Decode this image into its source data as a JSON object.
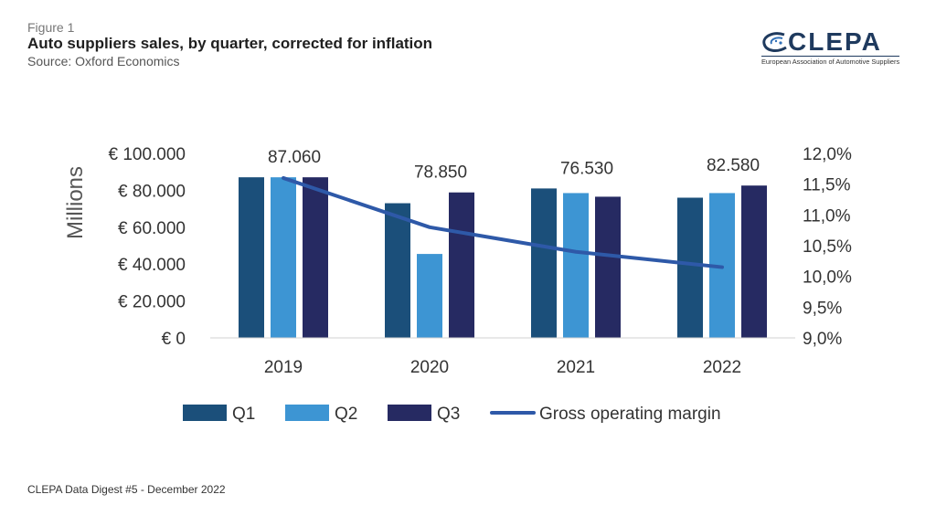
{
  "header": {
    "figure_label": "Figure 1",
    "title": "Auto suppliers sales, by quarter, corrected for inflation",
    "source": "Source: Oxford Economics"
  },
  "logo": {
    "wordmark": "CLEPA",
    "tagline": "European Association of Automotive Suppliers",
    "colors": {
      "primary": "#1f3a5e",
      "accent": "#2f6fb7"
    }
  },
  "footer": {
    "text": "CLEPA Data Digest #5 - December 2022"
  },
  "chart_data": {
    "type": "bar",
    "title": "",
    "xlabel": "",
    "ylabel": "Millions",
    "categories": [
      "2019",
      "2020",
      "2021",
      "2022"
    ],
    "y_ticks": [
      "€ 100.000",
      "€ 80.000",
      "€ 60.000",
      "€ 40.000",
      "€ 20.000",
      "€ 0"
    ],
    "ylim": [
      0,
      100000
    ],
    "y2_ticks": [
      "12,0%",
      "11,5%",
      "11,0%",
      "10,5%",
      "10,0%",
      "9,5%",
      "9,0%"
    ],
    "y2lim": [
      9.0,
      12.0
    ],
    "grid": false,
    "legend_position": "bottom",
    "series": [
      {
        "name": "Q1",
        "kind": "bar",
        "color": "#1b4f7a",
        "values": [
          87060,
          73000,
          81000,
          76000
        ]
      },
      {
        "name": "Q2",
        "kind": "bar",
        "color": "#3d95d3",
        "values": [
          87060,
          45500,
          78500,
          78500
        ]
      },
      {
        "name": "Q3",
        "kind": "bar",
        "color": "#262a62",
        "values": [
          87060,
          78850,
          76530,
          82580
        ]
      },
      {
        "name": "Gross operating margin",
        "kind": "line",
        "axis": "right",
        "color": "#2e59a8",
        "values": [
          11.6,
          10.8,
          10.4,
          10.15
        ]
      }
    ],
    "data_labels": [
      "87.060",
      "78.850",
      "76.530",
      "82.580"
    ]
  }
}
